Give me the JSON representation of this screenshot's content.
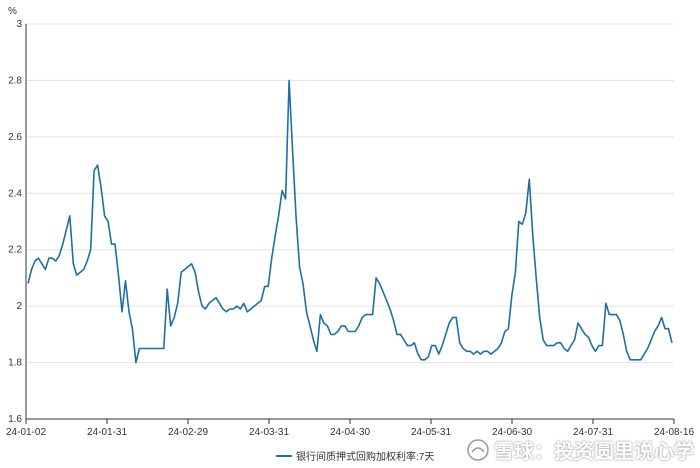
{
  "chart_data": {
    "type": "line",
    "unit_label": "%",
    "ylim": [
      1.6,
      3.0
    ],
    "yticks": [
      "1.6",
      "1.8",
      "2",
      "2.2",
      "2.4",
      "2.6",
      "2.8",
      "3"
    ],
    "xticks": [
      "24-01-02",
      "24-01-31",
      "24-02-29",
      "24-03-31",
      "24-04-30",
      "24-05-31",
      "24-06-30",
      "24-07-31",
      "24-08-16"
    ],
    "grid": "horizontal",
    "legend_position": "bottom-center",
    "series": [
      {
        "name": "银行间质押式回购加权利率:7天",
        "color": "#1f6fa1",
        "values": [
          2.08,
          2.13,
          2.16,
          2.17,
          2.15,
          2.13,
          2.17,
          2.17,
          2.16,
          2.18,
          2.22,
          2.27,
          2.32,
          2.15,
          2.11,
          2.12,
          2.13,
          2.16,
          2.2,
          2.48,
          2.5,
          2.42,
          2.32,
          2.3,
          2.22,
          2.22,
          2.11,
          1.98,
          2.09,
          1.98,
          1.92,
          1.8,
          1.85,
          1.85,
          1.85,
          1.85,
          1.85,
          1.85,
          1.85,
          1.85,
          2.06,
          1.93,
          1.96,
          2.01,
          2.12,
          2.13,
          2.14,
          2.15,
          2.12,
          2.05,
          2.0,
          1.99,
          2.01,
          2.02,
          2.03,
          2.01,
          1.99,
          1.98,
          1.99,
          1.99,
          2.0,
          1.99,
          2.01,
          1.98,
          1.99,
          2.0,
          2.01,
          2.02,
          2.07,
          2.07,
          2.17,
          2.25,
          2.32,
          2.41,
          2.38,
          2.8,
          2.55,
          2.32,
          2.14,
          2.08,
          1.98,
          1.93,
          1.88,
          1.84,
          1.97,
          1.94,
          1.93,
          1.9,
          1.9,
          1.91,
          1.93,
          1.93,
          1.91,
          1.91,
          1.91,
          1.93,
          1.96,
          1.97,
          1.97,
          1.97,
          2.1,
          2.08,
          2.05,
          2.02,
          1.99,
          1.95,
          1.9,
          1.9,
          1.88,
          1.86,
          1.86,
          1.87,
          1.83,
          1.81,
          1.81,
          1.82,
          1.86,
          1.86,
          1.83,
          1.86,
          1.9,
          1.94,
          1.96,
          1.96,
          1.87,
          1.85,
          1.84,
          1.84,
          1.83,
          1.84,
          1.83,
          1.84,
          1.84,
          1.83,
          1.84,
          1.85,
          1.87,
          1.91,
          1.92,
          2.04,
          2.12,
          2.3,
          2.29,
          2.33,
          2.45,
          2.25,
          2.1,
          1.96,
          1.88,
          1.86,
          1.86,
          1.86,
          1.87,
          1.87,
          1.85,
          1.84,
          1.86,
          1.88,
          1.94,
          1.92,
          1.9,
          1.89,
          1.86,
          1.84,
          1.86,
          1.86,
          2.01,
          1.97,
          1.97,
          1.97,
          1.95,
          1.9,
          1.84,
          1.81,
          1.81,
          1.81,
          1.81,
          1.83,
          1.85,
          1.88,
          1.91,
          1.93,
          1.96,
          1.92,
          1.92,
          1.87
        ]
      }
    ]
  },
  "watermark": {
    "text": "雪球：投资圆里说心学",
    "icon": "snowball-icon"
  }
}
